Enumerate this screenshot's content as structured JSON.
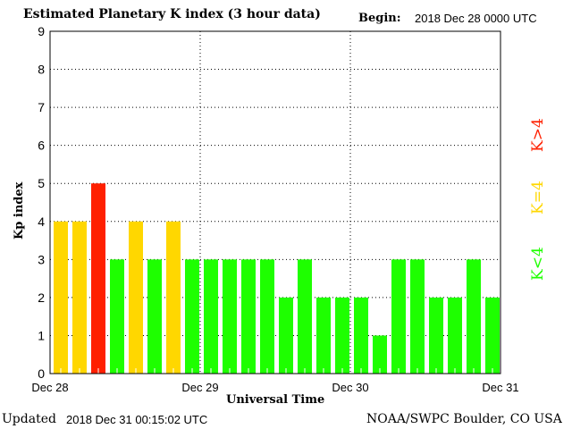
{
  "chart_data": {
    "type": "bar",
    "title": "Estimated Planetary K index (3 hour data)",
    "begin_label": "Begin:",
    "begin_value": "2018 Dec 28 0000 UTC",
    "xlabel": "Universal Time",
    "ylabel": "Kp index",
    "ylim": [
      0,
      9
    ],
    "yticks": [
      "0",
      "1",
      "2",
      "3",
      "4",
      "5",
      "6",
      "7",
      "8",
      "9"
    ],
    "xticks": [
      "Dec 28",
      "Dec 29",
      "Dec 30",
      "Dec 31"
    ],
    "values": [
      4,
      4,
      5,
      3,
      4,
      3,
      4,
      3,
      3,
      3,
      3,
      3,
      2,
      3,
      2,
      2,
      2,
      1,
      3,
      3,
      2,
      2,
      3,
      2
    ],
    "colors": {
      "low": "#1eff00",
      "equal": "#ffd700",
      "high": "#ff2000"
    },
    "legend": {
      "high": "K>4",
      "equal": "K=4",
      "low": "K<4"
    },
    "grid": "dotted"
  },
  "footer": {
    "updated_label": "Updated",
    "updated_value": "2018 Dec 31 00:15:02 UTC",
    "credit": "NOAA/SWPC Boulder, CO USA"
  }
}
